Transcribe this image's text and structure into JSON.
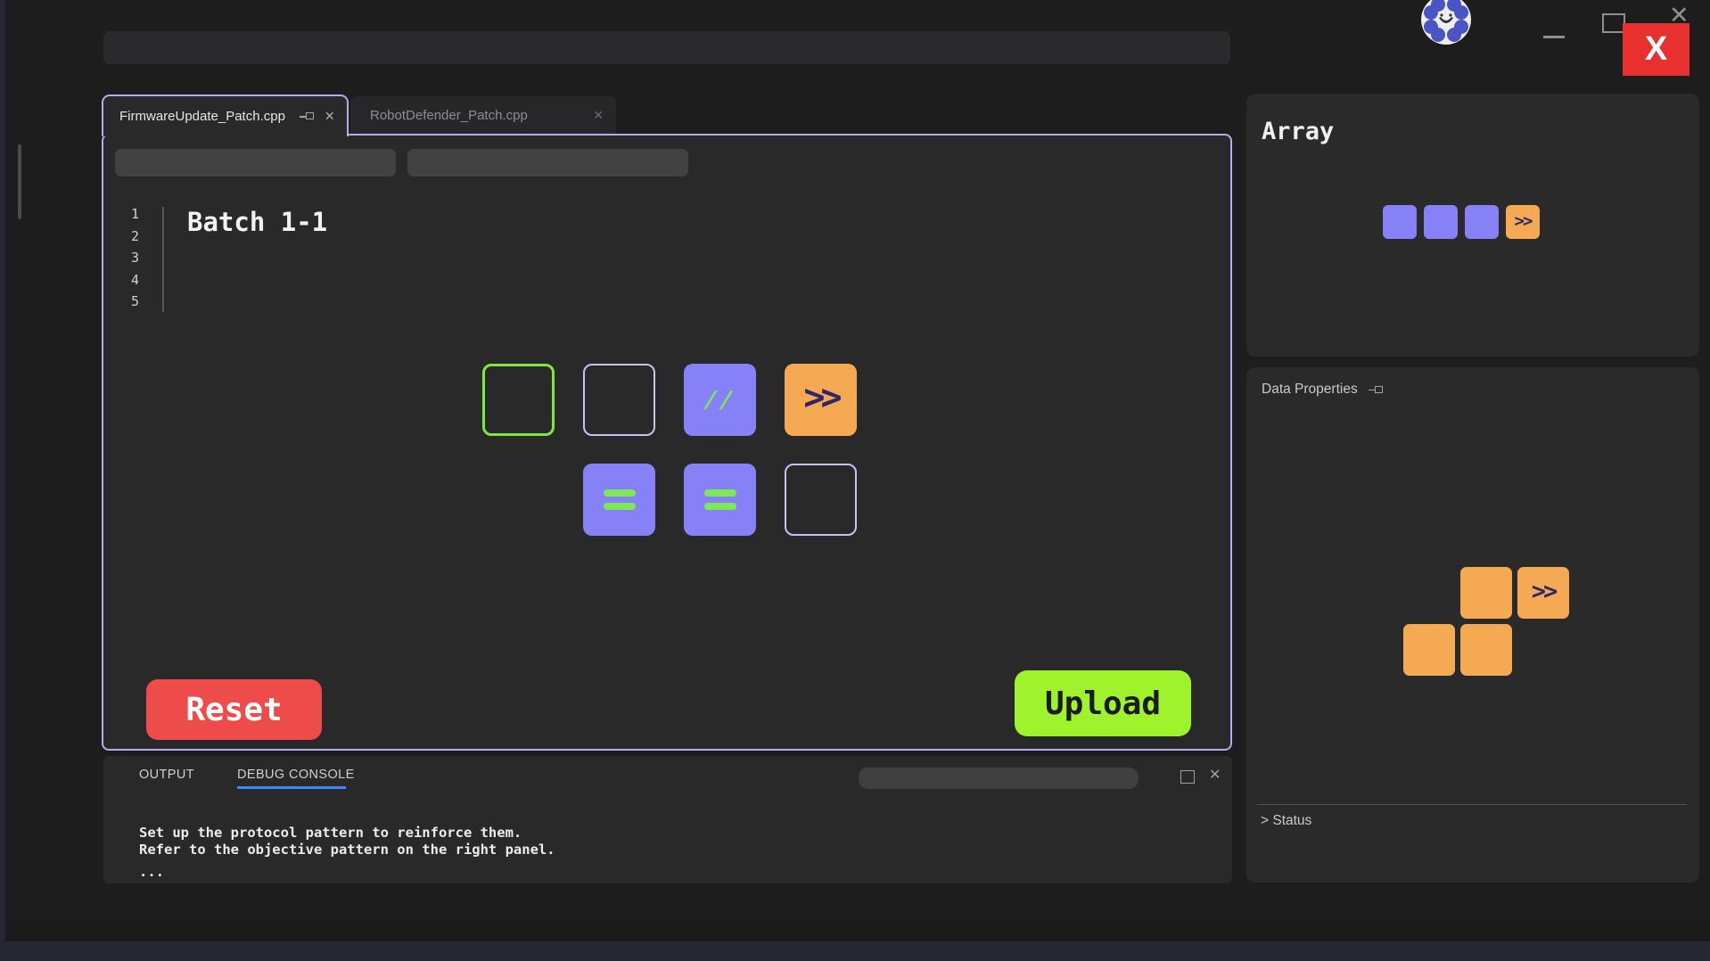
{
  "titlebar": {
    "logo": "flower-robot-logo",
    "minimize_icon": "minimize",
    "maximize_icon": "maximize",
    "close_glyph": "✕",
    "close_hint_label": "X"
  },
  "tabs": [
    {
      "label": "FirmwareUpdate_Patch.cpp",
      "pin_icon": "pin",
      "close_glyph": "✕",
      "active": true
    },
    {
      "label": "RobotDefender_Patch.cpp",
      "close_glyph": "✕",
      "active": false
    }
  ],
  "editor": {
    "line_numbers": [
      "1",
      "2",
      "3",
      "4",
      "5"
    ],
    "batch_label": "Batch 1-1",
    "board": {
      "rows": [
        [
          {
            "kind": "slot",
            "border": "green"
          },
          {
            "kind": "slot",
            "border": "purple"
          },
          {
            "kind": "block",
            "fill": "purple",
            "symbol": "//"
          },
          {
            "kind": "block",
            "fill": "orange",
            "symbol": ">>"
          }
        ],
        [
          null,
          {
            "kind": "block",
            "fill": "purple",
            "symbol": "="
          },
          {
            "kind": "block",
            "fill": "purple",
            "symbol": "="
          },
          {
            "kind": "slot",
            "border": "purple"
          }
        ]
      ]
    },
    "reset_label": "Reset",
    "upload_label": "Upload"
  },
  "console": {
    "output_tab": "OUTPUT",
    "debug_tab": "DEBUG CONSOLE",
    "active_tab": "DEBUG CONSOLE",
    "maximize_icon": "square",
    "close_glyph": "✕",
    "lines": [
      "Set up the protocol pattern to reinforce them.",
      "Refer to the objective pattern on the right panel.",
      "..."
    ]
  },
  "side": {
    "array_panel": {
      "title": "Array",
      "blocks": [
        {
          "kind": "block",
          "fill": "purple"
        },
        {
          "kind": "block",
          "fill": "purple"
        },
        {
          "kind": "block",
          "fill": "purple"
        },
        {
          "kind": "block",
          "fill": "orange",
          "symbol": ">>"
        }
      ]
    },
    "properties_panel": {
      "title": "Data Properties",
      "pin_icon": "pin",
      "pattern": [
        [
          null,
          {
            "kind": "block",
            "fill": "orange"
          },
          {
            "kind": "block",
            "fill": "orange",
            "symbol": ">>"
          }
        ],
        [
          {
            "kind": "block",
            "fill": "orange"
          },
          {
            "kind": "block",
            "fill": "orange"
          },
          null
        ]
      ],
      "status_label": "> Status"
    }
  },
  "colors": {
    "purple_tile": "#8781f8",
    "orange_tile": "#f6a953",
    "green_symbol": "#7de957",
    "indigo_symbol": "#2d2766",
    "green_slot_border": "#7fe83c",
    "lavender_slot_border": "#c9c1f1",
    "frame_border": "#b6abf0",
    "reset_red": "#ee4b4b",
    "upload_green": "#9ff32c",
    "debug_underline_blue": "#4285f4",
    "close_hint_red": "#e8312e"
  }
}
